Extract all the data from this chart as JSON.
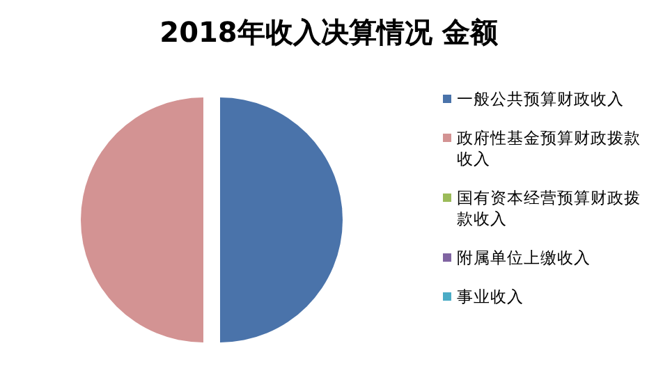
{
  "chart_data": {
    "type": "pie",
    "title": "2018年收入决算情况 金额",
    "categories": [
      "一般公共预算财政收入",
      "政府性基金预算财政拨款收入",
      "国有资本经营预算财政拨款收入",
      "附属单位上缴收入",
      "事业收入"
    ],
    "values": [
      50,
      50,
      0,
      0,
      0
    ],
    "colors": [
      "#4a73aa",
      "#d39393",
      "#9bbb59",
      "#8064a2",
      "#4bacc6"
    ],
    "legend": "right"
  }
}
